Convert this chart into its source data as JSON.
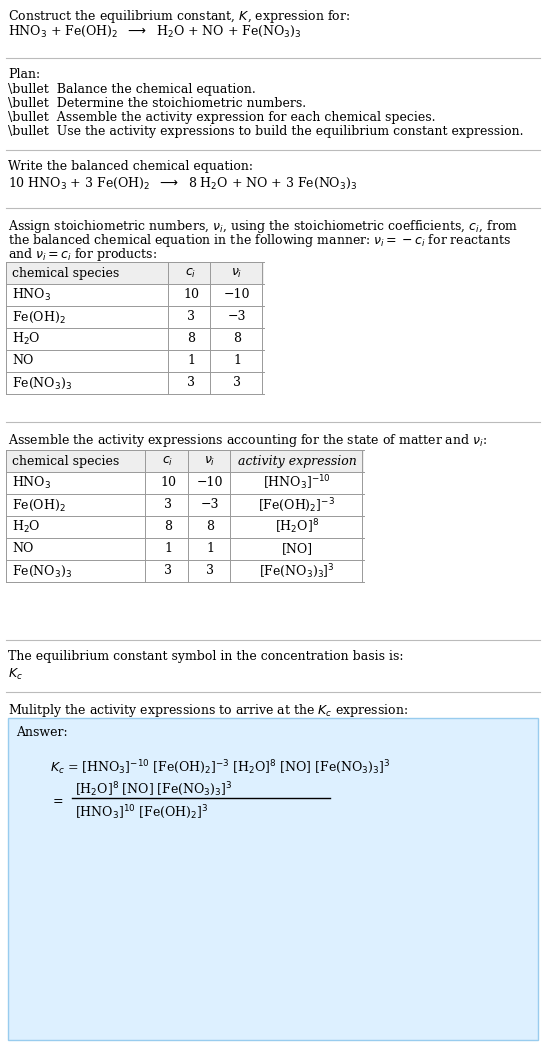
{
  "bg_color": "#ffffff",
  "text_color": "#000000",
  "light_blue_bg": "#ddf0ff",
  "font_size": 9.0,
  "table_font_size": 9.0,
  "sections": {
    "title_line1": "Construct the equilibrium constant, $K$, expression for:",
    "title_line2": "HNO$_3$ + Fe(OH)$_2$  $\\longrightarrow$  H$_2$O + NO + Fe(NO$_3$)$_3$",
    "plan_header": "Plan:",
    "plan_items": [
      "\\bullet  Balance the chemical equation.",
      "\\bullet  Determine the stoichiometric numbers.",
      "\\bullet  Assemble the activity expression for each chemical species.",
      "\\bullet  Use the activity expressions to build the equilibrium constant expression."
    ],
    "balanced_header": "Write the balanced chemical equation:",
    "balanced_eq": "10 HNO$_3$ + 3 Fe(OH)$_2$  $\\longrightarrow$  8 H$_2$O + NO + 3 Fe(NO$_3$)$_3$",
    "stoich_header": "Assign stoichiometric numbers, $\\nu_i$, using the stoichiometric coefficients, $c_i$, from\nthe balanced chemical equation in the following manner: $\\nu_i = -c_i$ for reactants\nand $\\nu_i = c_i$ for products:",
    "table1_headers": [
      "chemical species",
      "$c_i$",
      "$\\nu_i$"
    ],
    "table1_rows": [
      [
        "HNO$_3$",
        "10",
        "−10"
      ],
      [
        "Fe(OH)$_2$",
        "3",
        "−3"
      ],
      [
        "H$_2$O",
        "8",
        "8"
      ],
      [
        "NO",
        "1",
        "1"
      ],
      [
        "Fe(NO$_3$)$_3$",
        "3",
        "3"
      ]
    ],
    "assemble_header": "Assemble the activity expressions accounting for the state of matter and $\\nu_i$:",
    "table2_headers": [
      "chemical species",
      "$c_i$",
      "$\\nu_i$",
      "activity expression"
    ],
    "table2_rows": [
      [
        "HNO$_3$",
        "10",
        "−10",
        "[HNO$_3$]$^{-10}$"
      ],
      [
        "Fe(OH)$_2$",
        "3",
        "−3",
        "[Fe(OH)$_2$]$^{-3}$"
      ],
      [
        "H$_2$O",
        "8",
        "8",
        "[H$_2$O]$^8$"
      ],
      [
        "NO",
        "1",
        "1",
        "[NO]"
      ],
      [
        "Fe(NO$_3$)$_3$",
        "3",
        "3",
        "[Fe(NO$_3$)$_3$]$^3$"
      ]
    ],
    "kc_header": "The equilibrium constant symbol in the concentration basis is:",
    "kc_symbol": "$K_c$",
    "multiply_header": "Mulitply the activity expressions to arrive at the $K_c$ expression:",
    "answer_label": "Answer:",
    "kc_eq_line1": "$K_c$ = [HNO$_3$]$^{-10}$ [Fe(OH)$_2$]$^{-3}$ [H$_2$O]$^8$ [NO] [Fe(NO$_3$)$_3$]$^3$",
    "kc_numerator": "[H$_2$O]$^8$ [NO] [Fe(NO$_3$)$_3$]$^3$",
    "kc_denominator": "[HNO$_3$]$^{10}$ [Fe(OH)$_2$]$^3$"
  }
}
